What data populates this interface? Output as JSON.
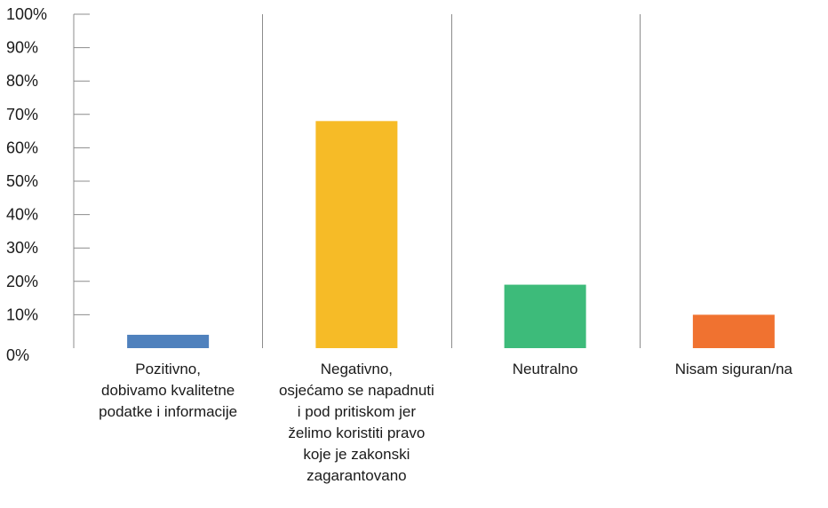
{
  "chart_data": {
    "type": "bar",
    "title": "",
    "xlabel": "",
    "ylabel": "",
    "ylim": [
      0,
      100
    ],
    "yticks": [
      "0%",
      "10%",
      "20%",
      "30%",
      "40%",
      "50%",
      "60%",
      "70%",
      "80%",
      "90%",
      "100%"
    ],
    "grid": false,
    "legend": "none",
    "categories": [
      [
        "Pozitivno,",
        "dobivamo kvalitetne",
        "podatke i informacije"
      ],
      [
        "Negativno,",
        "osjećamo se napadnuti",
        "i pod pritiskom jer",
        "želimo koristiti pravo",
        "koje je zakonski",
        "zagarantovano"
      ],
      [
        "Neutralno"
      ],
      [
        "Nisam siguran/na"
      ]
    ],
    "values": [
      4,
      68,
      19,
      10
    ],
    "colors": [
      "#4f81bd",
      "#f6bb27",
      "#3dbb7a",
      "#f07230"
    ],
    "axis_color": "#8c8c8c"
  }
}
